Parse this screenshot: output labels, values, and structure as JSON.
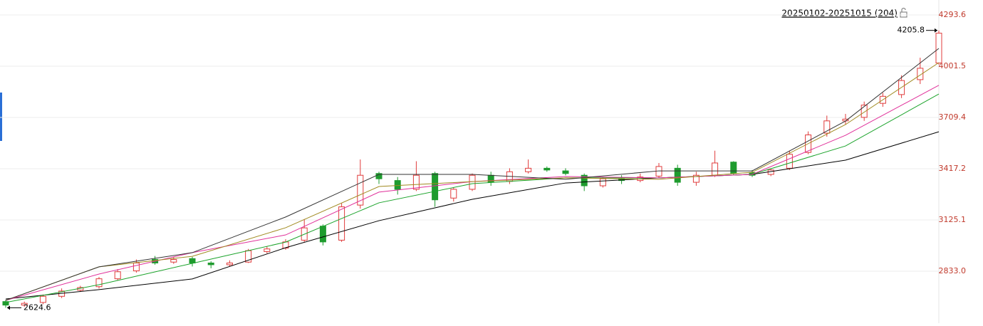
{
  "chart_data": {
    "type": "candlestick",
    "range_label": "20250102-20251015 (204)",
    "up_color": "#e03c3c",
    "down_color": "#1e9b2e",
    "xlim": [
      0,
      50
    ],
    "ylim": [
      2537,
      4379
    ],
    "yticks": [
      {
        "value": 2833,
        "label": "2833.0"
      },
      3125.1,
      3417.2,
      3709.4,
      4001.5,
      4293.6
    ],
    "grid": true,
    "open": [
      2660,
      2640,
      2655,
      2690,
      2725,
      2745,
      2790,
      2835,
      2900,
      2885,
      2905,
      2880,
      2870,
      2885,
      2945,
      2965,
      3010,
      3090,
      3010,
      3210,
      3390,
      3350,
      3300,
      3390,
      3250,
      3300,
      3380,
      3345,
      3400,
      3420,
      3405,
      3380,
      3320,
      3360,
      3350,
      3375,
      3420,
      3340,
      3380,
      3455,
      3395,
      3385,
      3420,
      3510,
      3620,
      3690,
      3710,
      3790,
      3840,
      3925,
      4020
    ],
    "high": [
      2670,
      2660,
      2700,
      2735,
      2750,
      2800,
      2845,
      2900,
      2920,
      2915,
      2915,
      2890,
      2895,
      2960,
      2975,
      3015,
      3130,
      3100,
      3220,
      3470,
      3400,
      3370,
      3460,
      3400,
      3310,
      3390,
      3400,
      3420,
      3470,
      3430,
      3420,
      3390,
      3370,
      3380,
      3390,
      3450,
      3440,
      3400,
      3520,
      3460,
      3410,
      3420,
      3520,
      3630,
      3720,
      3730,
      3800,
      3850,
      3950,
      4050,
      4205.8
    ],
    "low": [
      2624.6,
      2630,
      2645,
      2680,
      2715,
      2735,
      2780,
      2825,
      2870,
      2875,
      2860,
      2850,
      2860,
      2880,
      2935,
      2955,
      3000,
      2980,
      3000,
      3190,
      3330,
      3270,
      3290,
      3200,
      3230,
      3290,
      3320,
      3330,
      3390,
      3400,
      3380,
      3290,
      3310,
      3330,
      3340,
      3365,
      3320,
      3320,
      3370,
      3380,
      3370,
      3375,
      3410,
      3500,
      3600,
      3670,
      3690,
      3770,
      3820,
      3900,
      4010
    ],
    "close": [
      2640,
      2650,
      2690,
      2720,
      2740,
      2790,
      2830,
      2880,
      2880,
      2900,
      2880,
      2870,
      2880,
      2950,
      2960,
      3000,
      3080,
      3000,
      3200,
      3380,
      3360,
      3300,
      3380,
      3240,
      3300,
      3380,
      3340,
      3400,
      3420,
      3410,
      3390,
      3320,
      3360,
      3350,
      3370,
      3430,
      3340,
      3380,
      3450,
      3390,
      3380,
      3410,
      3500,
      3610,
      3690,
      3700,
      3780,
      3830,
      3920,
      3990,
      4190
    ],
    "series": [
      {
        "color": "#000000",
        "x": [
          0,
          5,
          10,
          15,
          20,
          25,
          30,
          35,
          40,
          45,
          50
        ],
        "values": [
          2675,
          2728,
          2789,
          2967,
          3121,
          3243,
          3336,
          3365,
          3385,
          3466,
          3628
        ]
      },
      {
        "color": "#1aa32a",
        "x": [
          0,
          5,
          10,
          15,
          20,
          25,
          30,
          35,
          40,
          45,
          50
        ],
        "values": [
          2655,
          2756,
          2878,
          2999,
          3223,
          3332,
          3365,
          3365,
          3385,
          3547,
          3843
        ]
      },
      {
        "color": "#e0309a",
        "x": [
          0,
          5,
          10,
          15,
          20,
          25,
          30,
          35,
          40,
          45,
          50
        ],
        "values": [
          2667,
          2817,
          2939,
          3040,
          3284,
          3344,
          3373,
          3365,
          3385,
          3608,
          3893
        ]
      },
      {
        "color": "#a08a20",
        "x": [
          0,
          5,
          10,
          15,
          20,
          25,
          30,
          35,
          40,
          45,
          50
        ],
        "values": [
          2667,
          2858,
          2918,
          3081,
          3316,
          3344,
          3365,
          3357,
          3397,
          3669,
          4022
        ]
      },
      {
        "color": "#333333",
        "x": [
          0,
          5,
          10,
          15,
          20,
          25,
          30,
          35,
          40,
          45,
          50
        ],
        "values": [
          2667,
          2858,
          2939,
          3142,
          3385,
          3385,
          3357,
          3405,
          3405,
          3689,
          4103
        ]
      }
    ]
  }
}
